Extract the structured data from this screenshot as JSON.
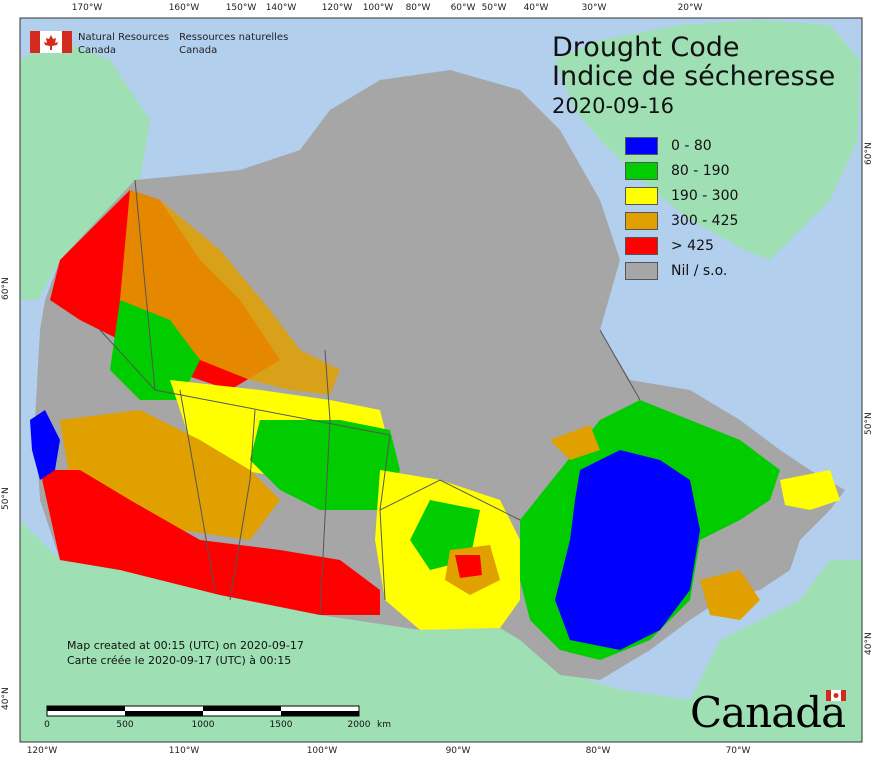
{
  "title": {
    "en": "Drought Code",
    "fr": "Indice de sécheresse",
    "date": "2020-09-16"
  },
  "agency": {
    "en_line1": "Natural Resources",
    "en_line2": "Canada",
    "fr_line1": "Ressources naturelles",
    "fr_line2": "Canada"
  },
  "legend": [
    {
      "label": "0 - 80",
      "color": "#0000ff"
    },
    {
      "label": "80 - 190",
      "color": "#00cc00"
    },
    {
      "label": "190 - 300",
      "color": "#ffff00"
    },
    {
      "label": "300 - 425",
      "color": "#e0a000"
    },
    {
      "label": "> 425",
      "color": "#ff0000"
    },
    {
      "label": "Nil / s.o.",
      "color": "#a6a6a6"
    }
  ],
  "credit": {
    "en": "Map created at 00:15 (UTC) on 2020-09-17",
    "fr": "Carte créée le 2020-09-17 (UTC) à 00:15"
  },
  "scale": {
    "labels": [
      "0",
      "500",
      "1000",
      "1500",
      "2000"
    ],
    "unit": "km"
  },
  "graticule": {
    "top": [
      "170°W",
      "160°W",
      "150°W",
      "140°W",
      "120°W",
      "100°W",
      "80°W",
      "60°W",
      "50°W",
      "40°W",
      "30°W",
      "20°W"
    ],
    "bottom": [
      "120°W",
      "110°W",
      "100°W",
      "90°W",
      "80°W",
      "70°W"
    ],
    "left": [
      "60°N",
      "50°N",
      "40°N"
    ],
    "right": [
      "60°N",
      "50°N",
      "40°N"
    ]
  },
  "wordmark": "Canada",
  "colors": {
    "ocean": "#b3cfee",
    "foreign_land": "#9ee0b4",
    "nil": "#a6a6a6",
    "border": "#555555"
  }
}
